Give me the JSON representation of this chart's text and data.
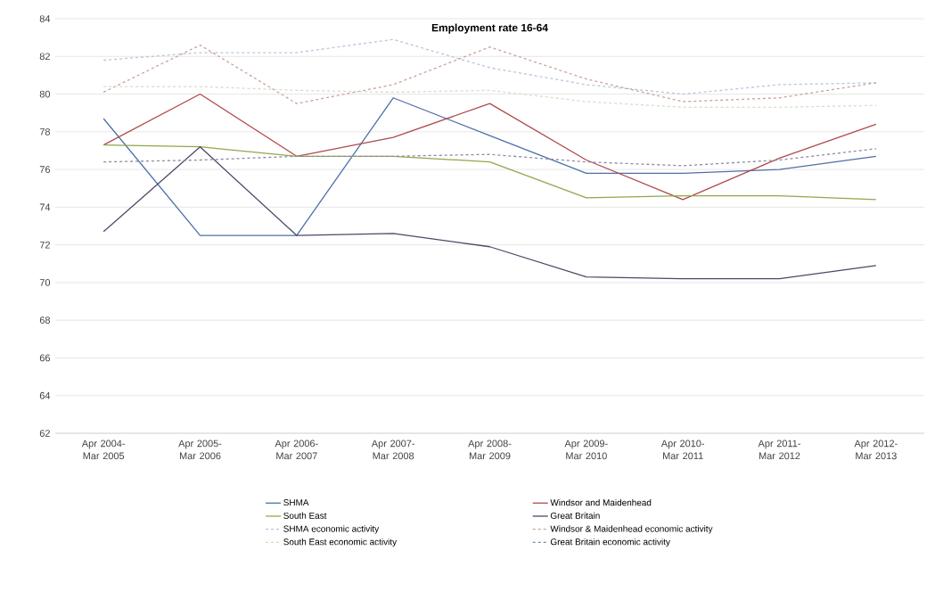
{
  "chart_data": {
    "type": "line",
    "title": "Employment rate 16-64",
    "categories": [
      "Apr 2004-Mar 2005",
      "Apr 2005-Mar 2006",
      "Apr 2006-Mar 2007",
      "Apr 2007-Mar 2008",
      "Apr 2008-Mar 2009",
      "Apr 2009-Mar 2010",
      "Apr 2010-Mar 2011",
      "Apr 2011-Mar 2012",
      "Apr 2012-Mar 2013"
    ],
    "series": [
      {
        "name": "SHMA",
        "color": "#4f6fa8",
        "line_style": "solid",
        "values": [
          78.7,
          72.5,
          72.5,
          79.8,
          77.8,
          75.8,
          75.8,
          76.0,
          76.7
        ]
      },
      {
        "name": "Windsor and Maidenhead",
        "color": "#b04a4a",
        "line_style": "solid",
        "values": [
          77.3,
          80.0,
          76.7,
          77.7,
          79.5,
          76.5,
          74.4,
          76.6,
          78.4
        ]
      },
      {
        "name": "South East",
        "color": "#8fa84a",
        "line_style": "solid",
        "values": [
          77.3,
          77.2,
          76.7,
          76.7,
          76.4,
          74.5,
          74.6,
          74.6,
          74.4
        ]
      },
      {
        "name": "Great Britain",
        "color": "#4a4a68",
        "line_style": "solid",
        "values": [
          72.7,
          77.2,
          72.5,
          72.6,
          71.9,
          70.3,
          70.2,
          70.2,
          70.9
        ]
      },
      {
        "name": "SHMA economic activity",
        "color": "#b8c4de",
        "line_style": "dashed",
        "values": [
          81.8,
          82.2,
          82.2,
          82.9,
          81.4,
          80.5,
          80.0,
          80.5,
          80.6
        ]
      },
      {
        "name": "Windsor & Maidenhead economic activity",
        "color": "#c8a0a6",
        "line_style": "dashed",
        "values": [
          80.1,
          82.6,
          79.5,
          80.5,
          82.5,
          80.8,
          79.6,
          79.8,
          80.6
        ]
      },
      {
        "name": "South East economic activity",
        "color": "#d4dec0",
        "line_style": "dashed",
        "values": [
          80.4,
          80.4,
          80.2,
          80.1,
          80.2,
          79.6,
          79.3,
          79.3,
          79.4
        ]
      },
      {
        "name": "Great Britain economic activity",
        "color": "#8a8aa2",
        "line_style": "dashed",
        "values": [
          76.4,
          76.5,
          76.7,
          76.7,
          76.8,
          76.4,
          76.2,
          76.5,
          77.1
        ]
      }
    ],
    "ylim": [
      62,
      84
    ],
    "yticks": [
      62,
      64,
      66,
      68,
      70,
      72,
      74,
      76,
      78,
      80,
      82,
      84
    ],
    "grid": "y",
    "legend": "bottom",
    "marker": "none"
  }
}
